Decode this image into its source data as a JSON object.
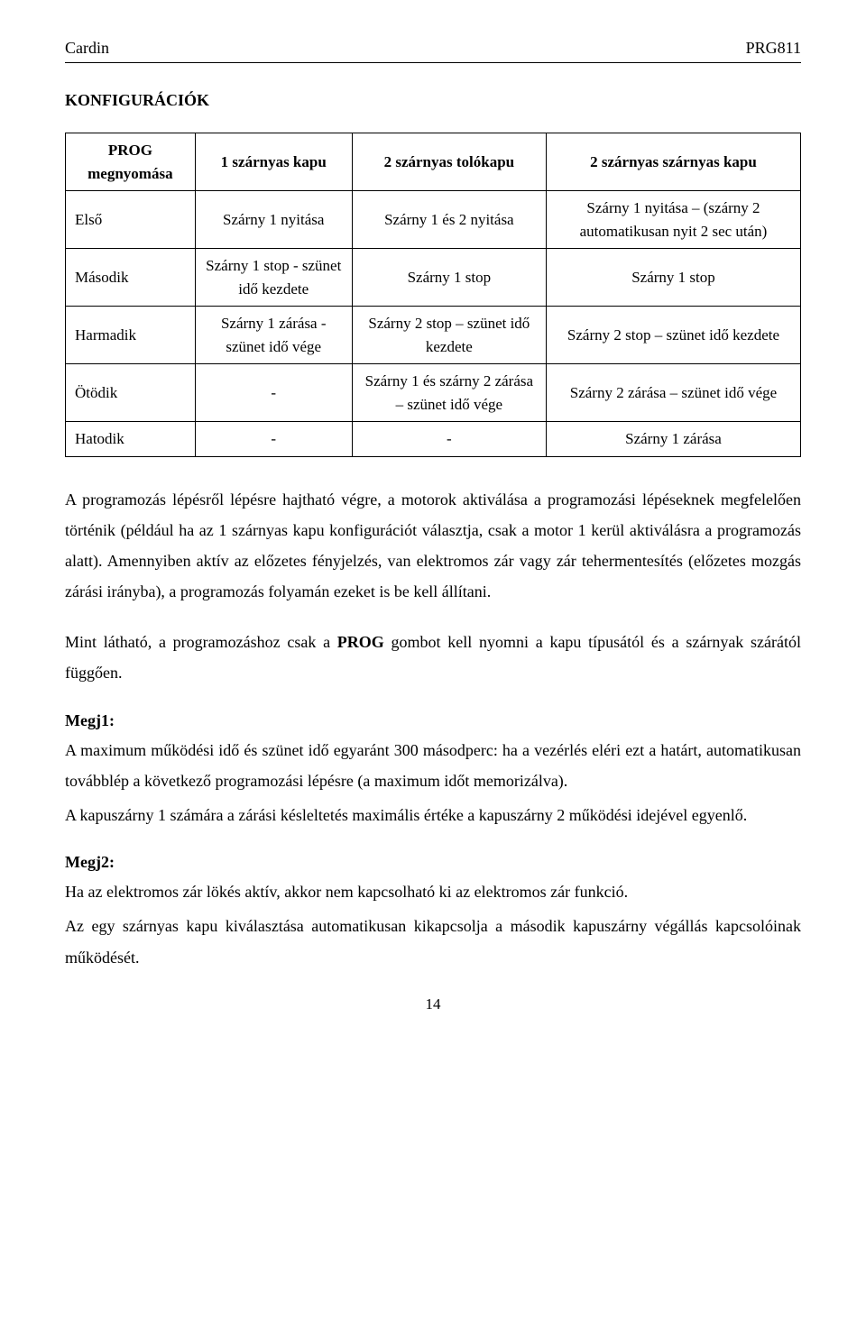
{
  "header": {
    "left": "Cardin",
    "right": "PRG811"
  },
  "section_title": "KONFIGURÁCIÓK",
  "table": {
    "columns": [
      "PROG megnyomása",
      "1 szárnyas kapu",
      "2 szárnyas tolókapu",
      "2 szárnyas szárnyas kapu"
    ],
    "rows": [
      {
        "label": "Első",
        "c1": "Szárny 1 nyitása",
        "c2": "Szárny 1 és 2 nyitása",
        "c3": "Szárny 1 nyitása – (szárny 2 automatikusan nyit 2 sec után)"
      },
      {
        "label": "Második",
        "c1": "Szárny 1 stop - szünet idő kezdete",
        "c2": "Szárny 1 stop",
        "c3": "Szárny 1 stop"
      },
      {
        "label": "Harmadik",
        "c1": "Szárny 1 zárása - szünet idő vége",
        "c2": "Szárny 2 stop – szünet idő kezdete",
        "c3": "Szárny 2 stop – szünet idő kezdete"
      },
      {
        "label": "Ötödik",
        "c1": "-",
        "c2": "Szárny 1 és szárny 2 zárása – szünet idő vége",
        "c3": "Szárny 2 zárása – szünet idő vége"
      },
      {
        "label": "Hatodik",
        "c1": "-",
        "c2": "-",
        "c3": "Szárny 1 zárása"
      }
    ]
  },
  "body": {
    "p1": "A programozás lépésről lépésre hajtható végre, a motorok aktiválása a programozási lépéseknek megfelelően történik (például ha az 1 szárnyas kapu konfigurációt választja, csak a motor 1 kerül aktiválásra a programozás alatt). Amennyiben aktív az előzetes fényjelzés, van elektromos zár vagy zár tehermentesítés (előzetes mozgás zárási irányba), a programozás folyamán ezeket is be kell állítani.",
    "p2_pre": "Mint látható, a programozáshoz csak a ",
    "p2_bold": "PROG",
    "p2_post": " gombot kell nyomni a kapu típusától és a szárnyak szárától függően.",
    "m1_label": "Megj1:",
    "m1_a": "A maximum működési idő és szünet idő egyaránt 300 másodperc: ha a vezérlés eléri ezt a határt, automatikusan továbblép a következő programozási lépésre (a maximum időt memorizálva).",
    "m1_b": "A kapuszárny 1 számára a zárási késleltetés maximális értéke a kapuszárny 2 működési idejével egyenlő.",
    "m2_label": "Megj2:",
    "m2_a": "Ha az elektromos zár lökés aktív, akkor nem kapcsolható ki az elektromos zár funkció.",
    "m2_b": "Az egy szárnyas kapu kiválasztása automatikusan kikapcsolja a második kapuszárny végállás kapcsolóinak működését."
  },
  "page_number": "14"
}
